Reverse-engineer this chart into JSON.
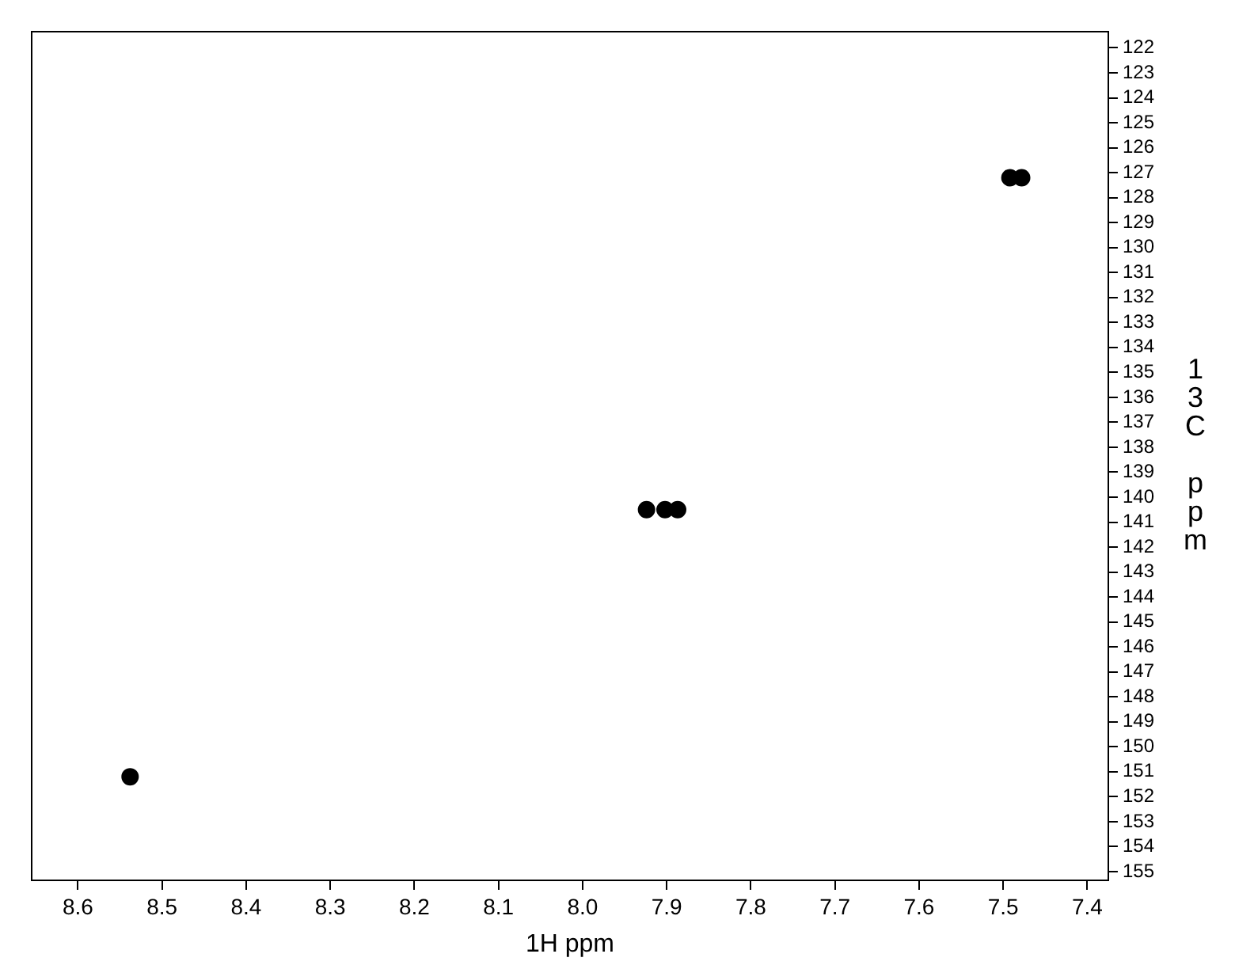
{
  "chart_data": {
    "type": "scatter",
    "xlabel": "1H ppm",
    "ylabel": "13C ppm",
    "xlim": [
      8.655,
      7.375
    ],
    "ylim": [
      155.35,
      121.35
    ],
    "xticks": [
      8.6,
      8.5,
      8.4,
      8.3,
      8.2,
      8.1,
      {
        "value": 8,
        "label": "8.0"
      },
      7.9,
      7.8,
      7.7,
      7.6,
      7.5,
      7.4
    ],
    "yticks": [
      122,
      123,
      124,
      125,
      126,
      127,
      128,
      129,
      130,
      131,
      132,
      133,
      134,
      135,
      136,
      137,
      138,
      139,
      140,
      141,
      142,
      143,
      144,
      145,
      146,
      147,
      148,
      149,
      150,
      151,
      152,
      153,
      154,
      155
    ],
    "grid": false,
    "legend": false,
    "marker": "circle",
    "series": [
      {
        "color": "#000000",
        "x": [
          8.538,
          7.924,
          7.902,
          7.887,
          7.492,
          7.478
        ],
        "values": [
          151.2,
          140.5,
          140.5,
          140.5,
          127.2,
          127.2
        ]
      }
    ]
  }
}
